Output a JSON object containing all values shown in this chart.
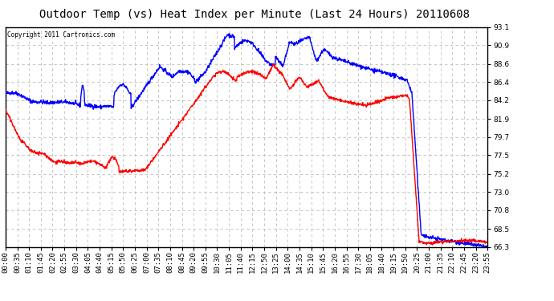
{
  "title": "Outdoor Temp (vs) Heat Index per Minute (Last 24 Hours) 20110608",
  "copyright": "Copyright 2011 Cartronics.com",
  "background_color": "#ffffff",
  "grid_color": "#aaaaaa",
  "ylim": [
    66.3,
    93.1
  ],
  "yticks": [
    66.3,
    68.5,
    70.8,
    73.0,
    75.2,
    77.5,
    79.7,
    81.9,
    84.2,
    86.4,
    88.6,
    90.9,
    93.1
  ],
  "xtick_labels": [
    "00:00",
    "00:35",
    "01:10",
    "01:45",
    "02:20",
    "02:55",
    "03:30",
    "04:05",
    "04:40",
    "05:15",
    "05:50",
    "06:25",
    "07:00",
    "07:35",
    "08:10",
    "08:45",
    "09:20",
    "09:55",
    "10:30",
    "11:05",
    "11:40",
    "12:15",
    "12:50",
    "13:25",
    "14:00",
    "14:35",
    "15:10",
    "15:45",
    "16:20",
    "16:55",
    "17:30",
    "18:05",
    "18:40",
    "19:15",
    "19:50",
    "20:25",
    "21:00",
    "21:35",
    "22:10",
    "22:45",
    "23:20",
    "23:55"
  ],
  "line_blue_color": "#0000ff",
  "line_red_color": "#ff0000",
  "line_width": 1.0,
  "title_fontsize": 10,
  "tick_fontsize": 6.5,
  "n_ticks": 42
}
